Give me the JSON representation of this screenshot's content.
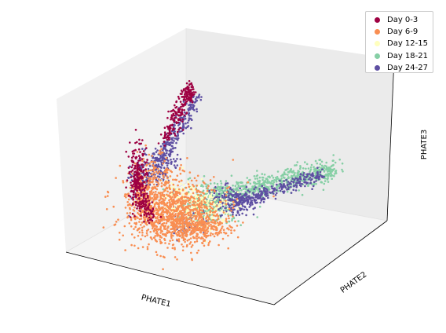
{
  "chart_data": {
    "type": "scatter",
    "projection": "3d",
    "title": "",
    "xlabel": "PHATE1",
    "ylabel": "PHATE2",
    "zlabel": "PHATE3",
    "tick_labels": false,
    "grid": false,
    "legend_position": "top-right",
    "series": [
      {
        "name": "Day 0-3",
        "color": "#9e0142"
      },
      {
        "name": "Day 6-9",
        "color": "#f98e52"
      },
      {
        "name": "Day 12-15",
        "color": "#ffffbe"
      },
      {
        "name": "Day 18-21",
        "color": "#86cfa5"
      },
      {
        "name": "Day 24-27",
        "color": "#5e4fa2"
      }
    ]
  }
}
